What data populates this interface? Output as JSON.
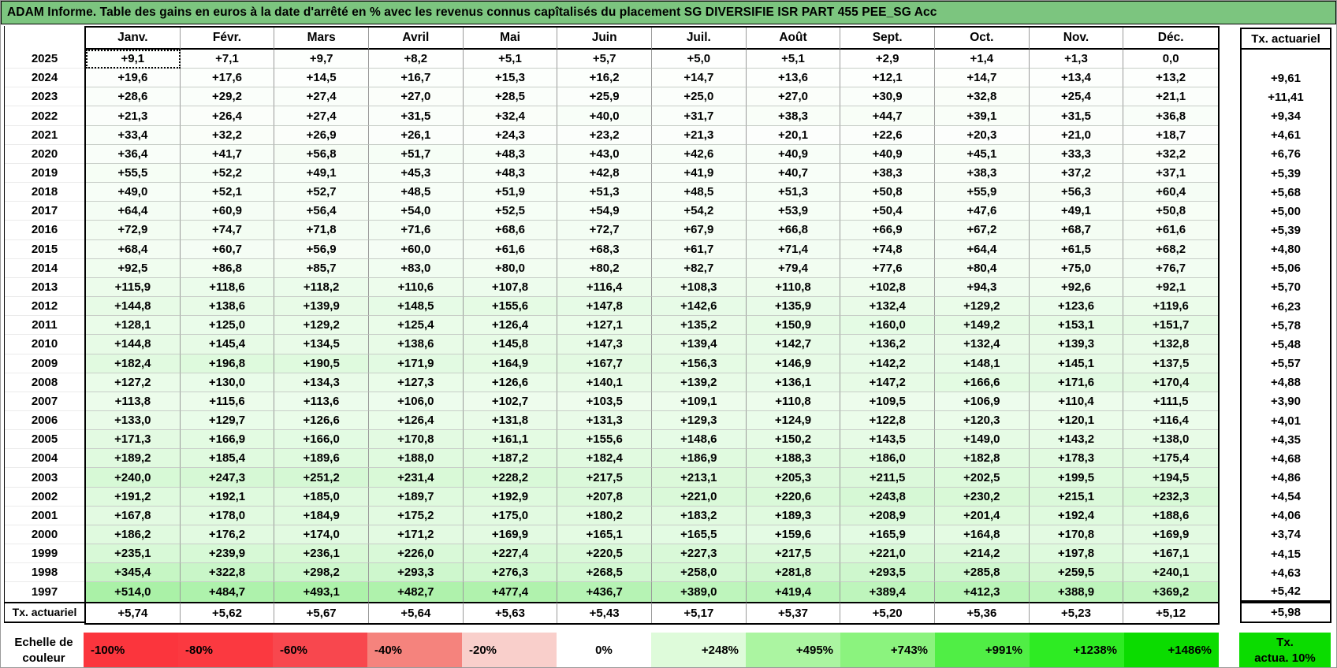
{
  "title": "ADAM Informe. Table des gains en euros à la date d'arrêté en % avec les revenus connus capîtalisés du placement SG DIVERSIFIE ISR PART 455 PEE_SG Acc",
  "colors": {
    "title_bg": "#7cc57f",
    "positive_scale_green": "#0bdc00",
    "grid_line_vertical": "#9a9a9a",
    "grid_line_horizontal": "#c8cec8"
  },
  "table": {
    "right_header": "Tx. actuariel",
    "tx_row_label": "Tx. actuariel",
    "active_cell": {
      "row_index": 0,
      "col_index": 0
    }
  },
  "legend": {
    "label_line1": "Echelle de",
    "label_line2": "couleur",
    "entries": [
      {
        "label": "-100%",
        "color": "#fb353d",
        "align": "left"
      },
      {
        "label": "-80%",
        "color": "#fb3940",
        "align": "left"
      },
      {
        "label": "-60%",
        "color": "#f8474e",
        "align": "left"
      },
      {
        "label": "-40%",
        "color": "#f5837d",
        "align": "left"
      },
      {
        "label": "-20%",
        "color": "#f9cfcb",
        "align": "left"
      },
      {
        "label": "0%",
        "color": "#ffffff",
        "align": "center"
      },
      {
        "label": "+248%",
        "color": "#defbda",
        "align": "right"
      },
      {
        "label": "+495%",
        "color": "#abf5a1",
        "align": "right"
      },
      {
        "label": "+743%",
        "color": "#8bf37e",
        "align": "right"
      },
      {
        "label": "+991%",
        "color": "#50ee45",
        "align": "right"
      },
      {
        "label": "+1238%",
        "color": "#2eeb23",
        "align": "right"
      },
      {
        "label": "+1486%",
        "color": "#0bdc00",
        "align": "right"
      }
    ],
    "right_box": {
      "line1": "Tx.",
      "line2": "actua. 10%",
      "color": "#0bdc00"
    }
  },
  "chart_data": {
    "type": "heatmap",
    "title": "ADAM Informe. Table des gains en euros à la date d'arrêté en % avec les revenus connus capîtalisés du placement SG DIVERSIFIE ISR PART 455 PEE_SG Acc",
    "units": "%",
    "columns": [
      "Janv.",
      "Févr.",
      "Mars",
      "Avril",
      "Mai",
      "Juin",
      "Juil.",
      "Août",
      "Sept.",
      "Oct.",
      "Nov.",
      "Déc."
    ],
    "rows": [
      "2025",
      "2024",
      "2023",
      "2022",
      "2021",
      "2020",
      "2019",
      "2018",
      "2017",
      "2016",
      "2015",
      "2014",
      "2013",
      "2012",
      "2011",
      "2010",
      "2009",
      "2008",
      "2007",
      "2006",
      "2005",
      "2004",
      "2003",
      "2002",
      "2001",
      "2000",
      "1999",
      "1998",
      "1997"
    ],
    "values": [
      [
        9.1,
        7.1,
        9.7,
        8.2,
        5.1,
        5.7,
        5.0,
        5.1,
        2.9,
        1.4,
        1.3,
        0.0
      ],
      [
        19.6,
        17.6,
        14.5,
        16.7,
        15.3,
        16.2,
        14.7,
        13.6,
        12.1,
        14.7,
        13.4,
        13.2
      ],
      [
        28.6,
        29.2,
        27.4,
        27.0,
        28.5,
        25.9,
        25.0,
        27.0,
        30.9,
        32.8,
        25.4,
        21.1
      ],
      [
        21.3,
        26.4,
        27.4,
        31.5,
        32.4,
        40.0,
        31.7,
        38.3,
        44.7,
        39.1,
        31.5,
        36.8
      ],
      [
        33.4,
        32.2,
        26.9,
        26.1,
        24.3,
        23.2,
        21.3,
        20.1,
        22.6,
        20.3,
        21.0,
        18.7
      ],
      [
        36.4,
        41.7,
        56.8,
        51.7,
        48.3,
        43.0,
        42.6,
        40.9,
        40.9,
        45.1,
        33.3,
        32.2
      ],
      [
        55.5,
        52.2,
        49.1,
        45.3,
        48.3,
        42.8,
        41.9,
        40.7,
        38.3,
        38.3,
        37.2,
        37.1
      ],
      [
        49.0,
        52.1,
        52.7,
        48.5,
        51.9,
        51.3,
        48.5,
        51.3,
        50.8,
        55.9,
        56.3,
        60.4
      ],
      [
        64.4,
        60.9,
        56.4,
        54.0,
        52.5,
        54.9,
        54.2,
        53.9,
        50.4,
        47.6,
        49.1,
        50.8
      ],
      [
        72.9,
        74.7,
        71.8,
        71.6,
        68.6,
        72.7,
        67.9,
        66.8,
        66.9,
        67.2,
        68.7,
        61.6
      ],
      [
        68.4,
        60.7,
        56.9,
        60.0,
        61.6,
        68.3,
        61.7,
        71.4,
        74.8,
        64.4,
        61.5,
        68.2
      ],
      [
        92.5,
        86.8,
        85.7,
        83.0,
        80.0,
        80.2,
        82.7,
        79.4,
        77.6,
        80.4,
        75.0,
        76.7
      ],
      [
        115.9,
        118.6,
        118.2,
        110.6,
        107.8,
        116.4,
        108.3,
        110.8,
        102.8,
        94.3,
        92.6,
        92.1
      ],
      [
        144.8,
        138.6,
        139.9,
        148.5,
        155.6,
        147.8,
        142.6,
        135.9,
        132.4,
        129.2,
        123.6,
        119.6
      ],
      [
        128.1,
        125.0,
        129.2,
        125.4,
        126.4,
        127.1,
        135.2,
        150.9,
        160.0,
        149.2,
        153.1,
        151.7
      ],
      [
        144.8,
        145.4,
        134.5,
        138.6,
        145.8,
        147.3,
        139.4,
        142.7,
        136.2,
        132.4,
        139.3,
        132.8
      ],
      [
        182.4,
        196.8,
        190.5,
        171.9,
        164.9,
        167.7,
        156.3,
        146.9,
        142.2,
        148.1,
        145.1,
        137.5
      ],
      [
        127.2,
        130.0,
        134.3,
        127.3,
        126.6,
        140.1,
        139.2,
        136.1,
        147.2,
        166.6,
        171.6,
        170.4
      ],
      [
        113.8,
        115.6,
        113.6,
        106.0,
        102.7,
        103.5,
        109.1,
        110.8,
        109.5,
        106.9,
        110.4,
        111.5
      ],
      [
        133.0,
        129.7,
        126.6,
        126.4,
        131.8,
        131.3,
        129.3,
        124.9,
        122.8,
        120.3,
        120.1,
        116.4
      ],
      [
        171.3,
        166.9,
        166.0,
        170.8,
        161.1,
        155.6,
        148.6,
        150.2,
        143.5,
        149.0,
        143.2,
        138.0
      ],
      [
        189.2,
        185.4,
        189.6,
        188.0,
        187.2,
        182.4,
        186.9,
        188.3,
        186.0,
        182.8,
        178.3,
        175.4
      ],
      [
        240.0,
        247.3,
        251.2,
        231.4,
        228.2,
        217.5,
        213.1,
        205.3,
        211.5,
        202.5,
        199.5,
        194.5
      ],
      [
        191.2,
        192.1,
        185.0,
        189.7,
        192.9,
        207.8,
        221.0,
        220.6,
        243.8,
        230.2,
        215.1,
        232.3
      ],
      [
        167.8,
        178.0,
        184.9,
        175.2,
        175.0,
        180.2,
        183.2,
        189.3,
        208.9,
        201.4,
        192.4,
        188.6
      ],
      [
        186.2,
        176.2,
        174.0,
        171.2,
        169.9,
        165.1,
        165.5,
        159.6,
        165.9,
        164.8,
        170.8,
        169.9
      ],
      [
        235.1,
        239.9,
        236.1,
        226.0,
        227.4,
        220.5,
        227.3,
        217.5,
        221.0,
        214.2,
        197.8,
        167.1
      ],
      [
        345.4,
        322.8,
        298.2,
        293.3,
        276.3,
        268.5,
        258.0,
        281.8,
        293.5,
        285.8,
        259.5,
        240.1
      ],
      [
        514.0,
        484.7,
        493.1,
        482.7,
        477.4,
        436.7,
        389.0,
        419.4,
        389.4,
        412.3,
        388.9,
        369.2
      ]
    ],
    "tx_actuariel_column": {
      "label": "Tx. actuariel",
      "values": [
        null,
        9.61,
        11.41,
        9.34,
        4.61,
        6.76,
        5.39,
        5.68,
        5.0,
        5.39,
        4.8,
        5.06,
        5.7,
        6.23,
        5.78,
        5.48,
        5.57,
        4.88,
        3.9,
        4.01,
        4.35,
        4.68,
        4.86,
        4.54,
        4.06,
        3.74,
        4.15,
        4.63,
        5.42
      ]
    },
    "tx_actuariel_row": {
      "label": "Tx. actuariel",
      "values": [
        5.74,
        5.62,
        5.67,
        5.64,
        5.63,
        5.43,
        5.17,
        5.37,
        5.2,
        5.36,
        5.23,
        5.12
      ],
      "tx": 5.98
    },
    "color_scale": {
      "max_value": 1486,
      "labels": [
        "-100%",
        "-80%",
        "-60%",
        "-40%",
        "-20%",
        "0%",
        "+248%",
        "+495%",
        "+743%",
        "+991%",
        "+1238%",
        "+1486%"
      ],
      "right_box_label": "Tx. actua. 10%"
    }
  }
}
